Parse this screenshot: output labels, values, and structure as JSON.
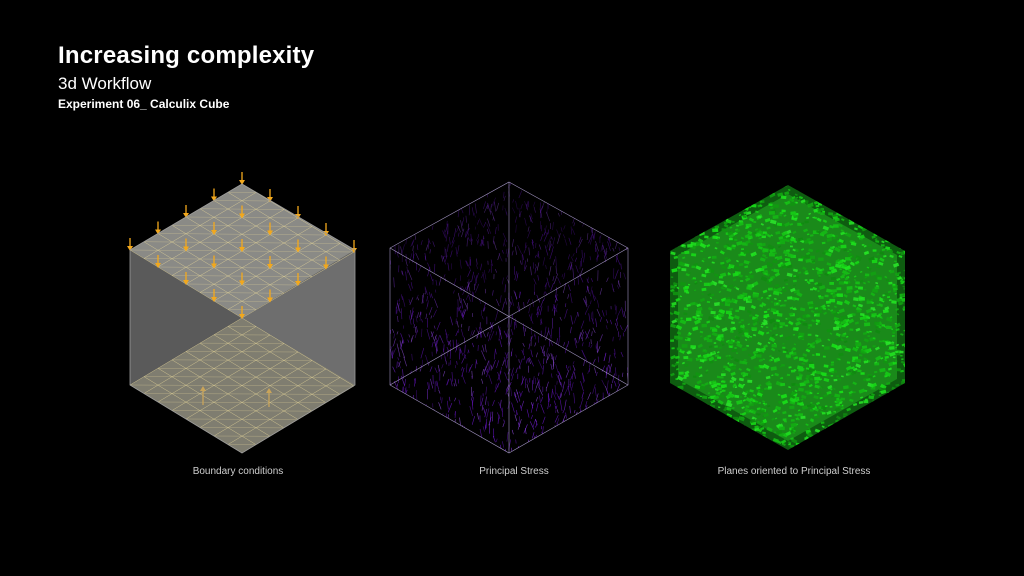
{
  "header": {
    "title": "Increasing complexity",
    "subtitle": "3d Workflow",
    "experiment": "Experiment 06_ Calculix Cube"
  },
  "panels": [
    {
      "id": "boundary",
      "caption": "Boundary conditions"
    },
    {
      "id": "stress",
      "caption": "Principal Stress"
    },
    {
      "id": "planes",
      "caption": "Planes oriented to Principal Stress"
    }
  ],
  "colors": {
    "background": "#000000",
    "mesh_line": "#e8d89a",
    "load_arrow": "#f2a81d",
    "stress": "#7a2bd8",
    "planes": "#1fbf1f"
  }
}
